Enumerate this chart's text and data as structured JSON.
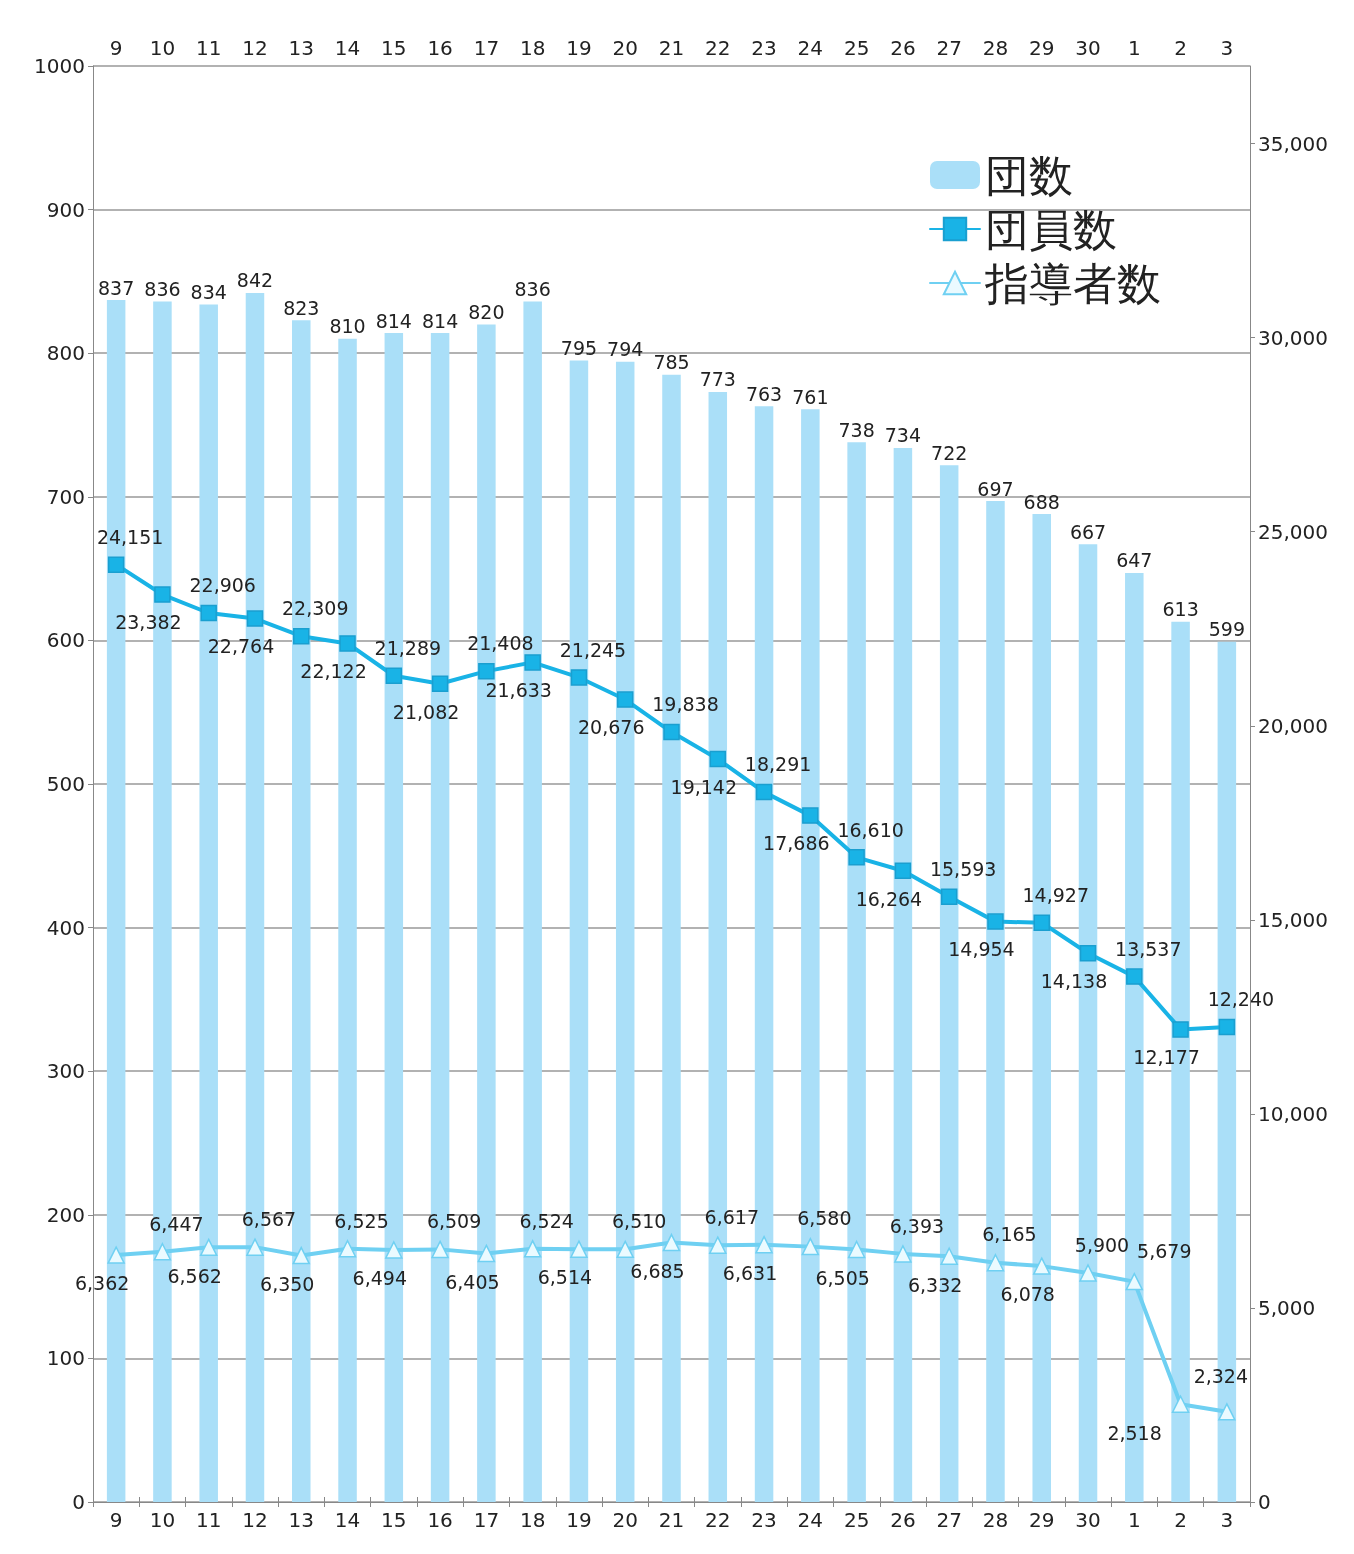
{
  "chart_data": {
    "type": "bar",
    "categories": [
      "9",
      "10",
      "11",
      "12",
      "13",
      "14",
      "15",
      "16",
      "17",
      "18",
      "19",
      "20",
      "21",
      "22",
      "23",
      "24",
      "25",
      "26",
      "27",
      "28",
      "29",
      "30",
      "1",
      "2",
      "3"
    ],
    "series": [
      {
        "name": "団数",
        "color": "#aadff8",
        "values": [
          837,
          836,
          834,
          842,
          823,
          810,
          814,
          814,
          820,
          836,
          795,
          794,
          785,
          773,
          763,
          761,
          738,
          734,
          722,
          697,
          688,
          667,
          647,
          613,
          599
        ]
      },
      {
        "name": "団員数",
        "type": "line",
        "axis": "y2",
        "marker": "square",
        "color": "#19b3e6",
        "values": [
          24151,
          23382,
          22906,
          22764,
          22309,
          22122,
          21289,
          21082,
          21408,
          21633,
          21245,
          20676,
          19838,
          19142,
          18291,
          17686,
          16610,
          16264,
          15593,
          14954,
          14927,
          14138,
          13537,
          12177,
          12240
        ],
        "value_labels": [
          "24,151",
          "23,382",
          "22,906",
          "22,764",
          "22,309",
          "22,122",
          "21,289",
          "21,082",
          "21,408",
          "21,633",
          "21,245",
          "20,676",
          "19,838",
          "19,142",
          "18,291",
          "17,686",
          "16,610",
          "16,264",
          "15,593",
          "14,954",
          "14,927",
          "14,138",
          "13,537",
          "12,177",
          "12,240"
        ]
      },
      {
        "name": "指導者数",
        "type": "line",
        "axis": "y2",
        "marker": "triangle",
        "color": "#6fd0f2",
        "values": [
          6362,
          6447,
          6562,
          6567,
          6350,
          6525,
          6494,
          6509,
          6405,
          6524,
          6514,
          6510,
          6685,
          6617,
          6631,
          6580,
          6505,
          6393,
          6332,
          6165,
          6078,
          5900,
          5679,
          2518,
          2324
        ],
        "value_labels": [
          "6,362",
          "6,447",
          "6,562",
          "6,567",
          "6,350",
          "6,525",
          "6,494",
          "6,509",
          "6,405",
          "6,524",
          "6,514",
          "6,510",
          "6,685",
          "6,617",
          "6,631",
          "6,580",
          "6,505",
          "6,393",
          "6,332",
          "6,165",
          "6,078",
          "5,900",
          "5,679",
          "2,518",
          "2,324"
        ]
      }
    ],
    "ylim": [
      0,
      1000
    ],
    "yticks": [
      0,
      100,
      200,
      300,
      400,
      500,
      600,
      700,
      800,
      900,
      1000
    ],
    "y2lim": [
      0,
      37000
    ],
    "y2ticks": [
      0,
      {
        "value": 5000,
        "label": "5,000"
      },
      {
        "value": 10000,
        "label": "10,000"
      },
      {
        "value": 15000,
        "label": "15,000"
      },
      {
        "value": 20000,
        "label": "20,000"
      },
      {
        "value": 25000,
        "label": "25,000"
      },
      {
        "value": 30000,
        "label": "30,000"
      },
      {
        "value": 35000,
        "label": "35,000"
      }
    ],
    "grid": "y",
    "legend": "top right",
    "data_labels": true
  }
}
